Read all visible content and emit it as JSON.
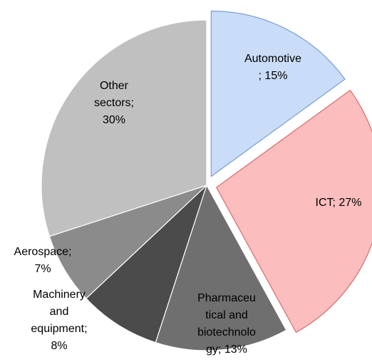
{
  "chart_data": {
    "type": "pie",
    "values": [
      15,
      27,
      13,
      8,
      7,
      30
    ],
    "value_labels": [
      [
        "Automotive",
        "; 15%"
      ],
      [
        "ICT; 27%"
      ],
      [
        "Pharmaceu",
        "tical and",
        "biotechnolo",
        "gy; 13%"
      ],
      [
        "Machinery",
        "and",
        "equipment;",
        "8%"
      ],
      [
        "Aerospace;",
        "7%"
      ],
      [
        "Other",
        "sectors;",
        "30%"
      ]
    ],
    "colors": [
      "#c9dcf8",
      "#fbbdbd",
      "#6f6f6f",
      "#4b4b4b",
      "#8b8b8b",
      "#c0c0c0"
    ],
    "strokes": [
      "#7d9fd2",
      "#d86a6a",
      "#ffffff",
      "#ffffff",
      "#ffffff",
      "#ffffff"
    ],
    "explode": [
      true,
      true,
      false,
      false,
      false,
      false
    ]
  }
}
